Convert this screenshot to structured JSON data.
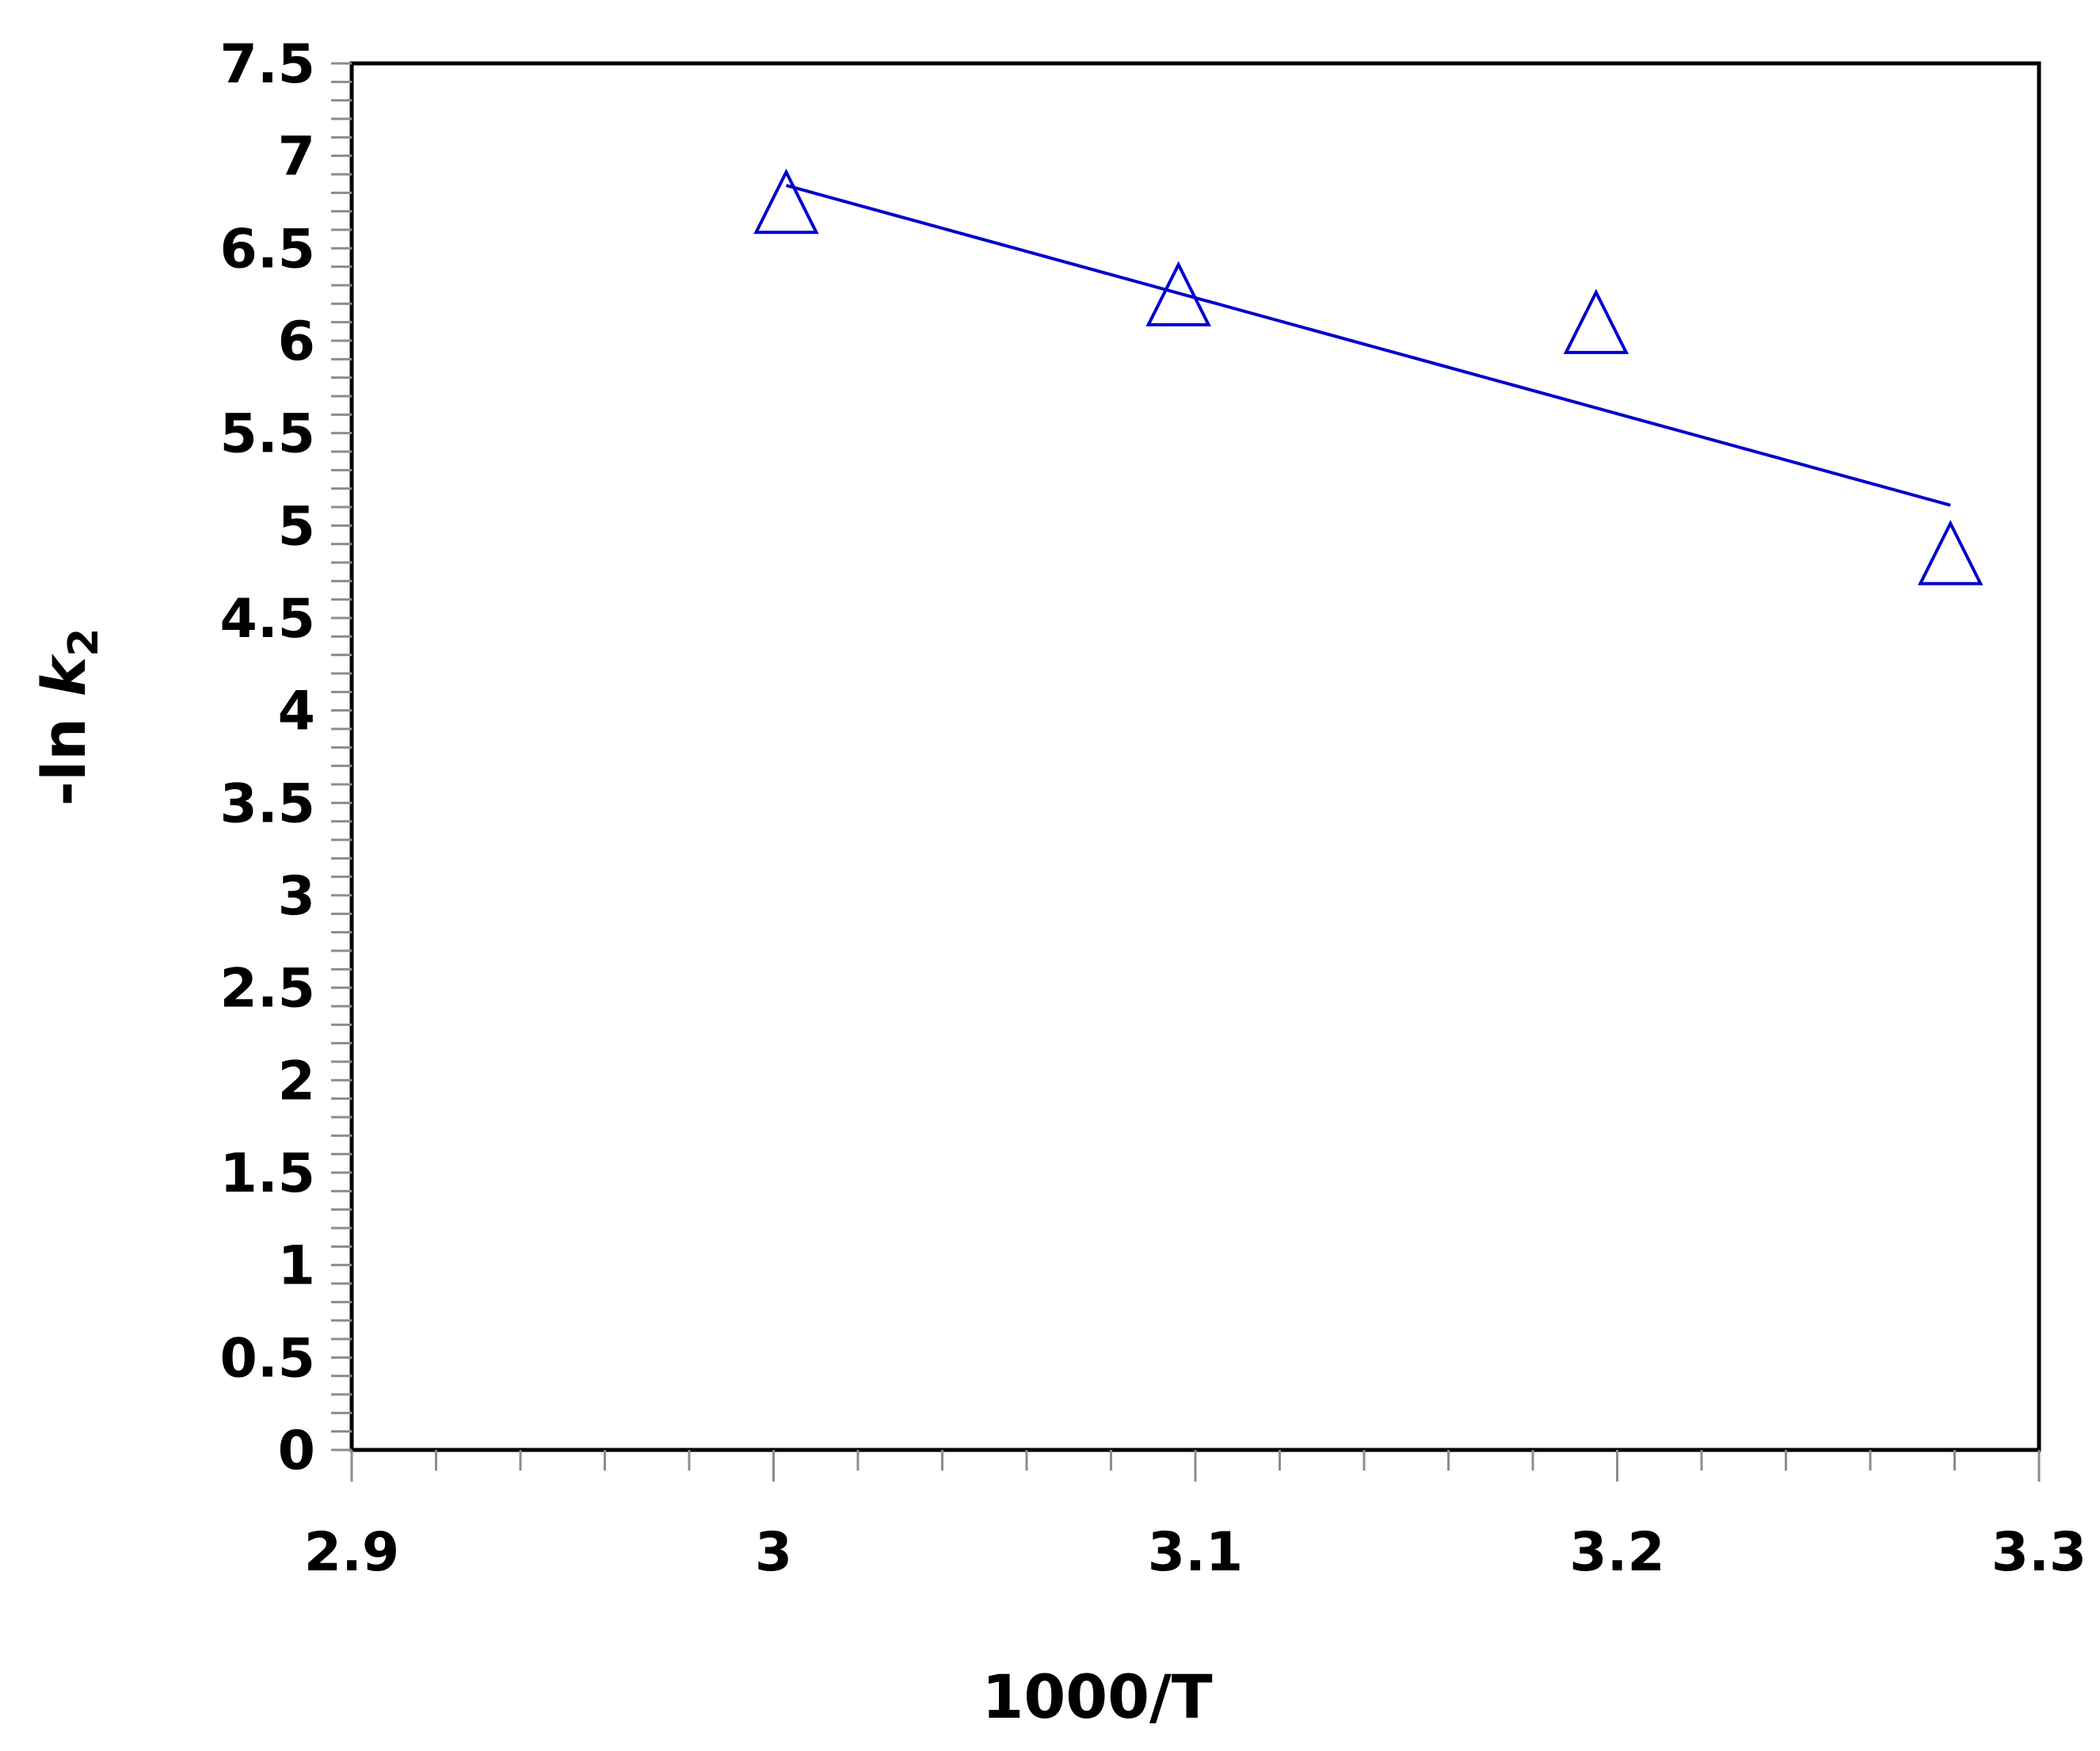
{
  "chart_data": {
    "type": "scatter",
    "xlabel": "1000/T",
    "ylabel": {
      "prefix": "-ln ",
      "var": "k",
      "sub": "2"
    },
    "xlim": [
      2.9,
      3.3
    ],
    "ylim": [
      0,
      7.5
    ],
    "x_ticks": [
      "2.9",
      "3",
      "3.1",
      "3.2",
      "3.3"
    ],
    "y_ticks": [
      "0",
      "0.5",
      "1",
      "1.5",
      "2",
      "2.5",
      "3",
      "3.5",
      "4",
      "4.5",
      "5",
      "5.5",
      "6",
      "6.5",
      "7",
      "7.5"
    ],
    "grid": false,
    "series": [
      {
        "marker": "open-triangle",
        "color": "#0000cc",
        "points": [
          {
            "x": 3.003,
            "y": 6.7
          },
          {
            "x": 3.096,
            "y": 6.2
          },
          {
            "x": 3.195,
            "y": 6.05
          },
          {
            "x": 3.279,
            "y": 4.8
          }
        ],
        "trendline": {
          "type": "linear",
          "from": [
            3.003,
            6.84
          ],
          "to": [
            3.279,
            5.11
          ]
        }
      }
    ]
  }
}
